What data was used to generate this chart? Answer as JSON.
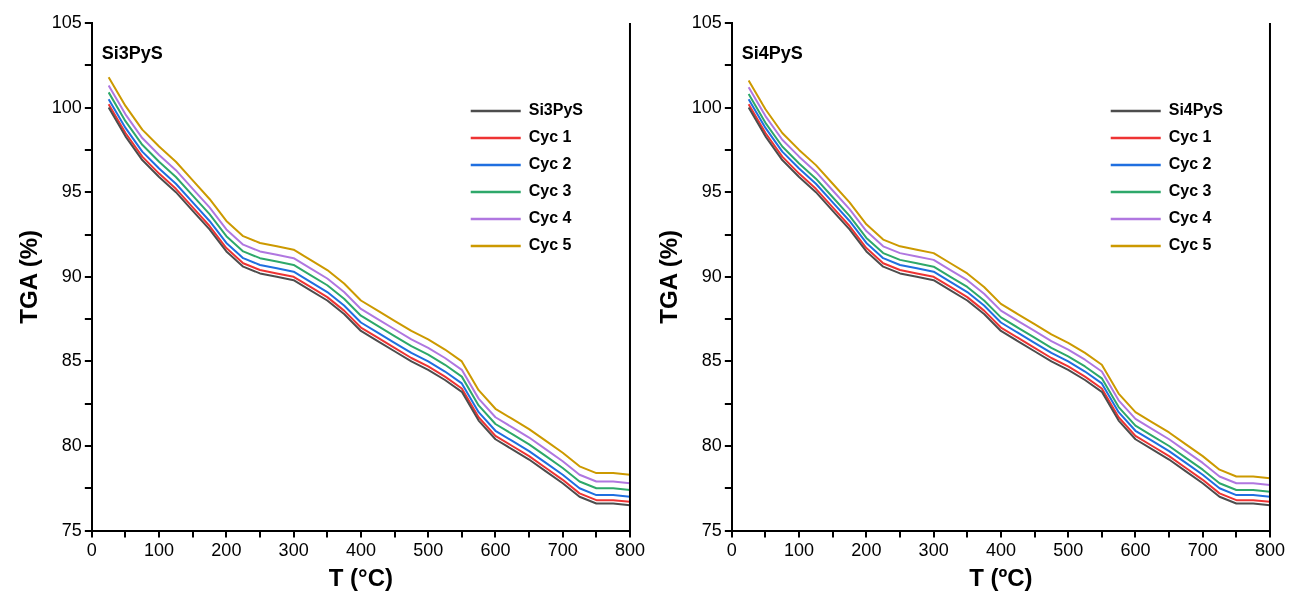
{
  "chart_data": [
    {
      "type": "line",
      "title": "Si3PyS",
      "xlabel": "T (°C)",
      "ylabel": "TGA (%)",
      "x": [
        25,
        50,
        75,
        100,
        125,
        150,
        175,
        200,
        225,
        250,
        275,
        300,
        325,
        350,
        375,
        400,
        425,
        450,
        475,
        500,
        525,
        550,
        575,
        600,
        625,
        650,
        675,
        700,
        725,
        750,
        775,
        800
      ],
      "series": [
        {
          "name": "Si3PyS",
          "color": "#4d4d4d",
          "values": [
            100.0,
            98.3,
            96.9,
            95.9,
            95.0,
            93.9,
            92.8,
            91.5,
            90.6,
            90.2,
            90.0,
            89.8,
            89.2,
            88.6,
            87.8,
            86.8,
            86.2,
            85.6,
            85.0,
            84.5,
            83.9,
            83.2,
            81.5,
            80.4,
            79.8,
            79.2,
            78.5,
            77.8,
            77.0,
            76.6,
            76.6,
            76.5
          ]
        },
        {
          "name": "Cyc 1",
          "color": "#ee3333",
          "values": [
            100.2,
            98.5,
            97.1,
            96.1,
            95.2,
            94.1,
            93.0,
            91.7,
            90.8,
            90.4,
            90.2,
            90.0,
            89.4,
            88.8,
            88.0,
            87.0,
            86.4,
            85.8,
            85.2,
            84.7,
            84.1,
            83.4,
            81.7,
            80.6,
            80.0,
            79.4,
            78.7,
            78.0,
            77.2,
            76.8,
            76.8,
            76.7
          ]
        },
        {
          "name": "Cyc 2",
          "color": "#1f6fe0",
          "values": [
            100.5,
            98.8,
            97.4,
            96.4,
            95.5,
            94.4,
            93.3,
            92.0,
            91.1,
            90.7,
            90.5,
            90.3,
            89.7,
            89.1,
            88.3,
            87.3,
            86.7,
            86.1,
            85.5,
            85.0,
            84.4,
            83.7,
            82.0,
            80.9,
            80.3,
            79.7,
            79.0,
            78.3,
            77.5,
            77.1,
            77.1,
            77.0
          ]
        },
        {
          "name": "Cyc 3",
          "color": "#2ea86a",
          "values": [
            100.9,
            99.2,
            97.8,
            96.8,
            95.9,
            94.8,
            93.7,
            92.4,
            91.5,
            91.1,
            90.9,
            90.7,
            90.1,
            89.5,
            88.7,
            87.7,
            87.1,
            86.5,
            85.9,
            85.4,
            84.8,
            84.1,
            82.4,
            81.3,
            80.7,
            80.1,
            79.4,
            78.7,
            77.9,
            77.5,
            77.5,
            77.4
          ]
        },
        {
          "name": "Cyc 4",
          "color": "#b077e0",
          "values": [
            101.3,
            99.6,
            98.2,
            97.2,
            96.3,
            95.2,
            94.1,
            92.8,
            91.9,
            91.5,
            91.3,
            91.1,
            90.5,
            89.9,
            89.1,
            88.1,
            87.5,
            86.9,
            86.3,
            85.8,
            85.2,
            84.5,
            82.8,
            81.7,
            81.1,
            80.5,
            79.8,
            79.1,
            78.3,
            77.9,
            77.9,
            77.8
          ]
        },
        {
          "name": "Cyc 5",
          "color": "#cc9900",
          "values": [
            101.8,
            100.1,
            98.7,
            97.7,
            96.8,
            95.7,
            94.6,
            93.3,
            92.4,
            92.0,
            91.8,
            91.6,
            91.0,
            90.4,
            89.6,
            88.6,
            88.0,
            87.4,
            86.8,
            86.3,
            85.7,
            85.0,
            83.3,
            82.2,
            81.6,
            81.0,
            80.3,
            79.6,
            78.8,
            78.4,
            78.4,
            78.3
          ]
        }
      ],
      "xlim": [
        0,
        800
      ],
      "xticks": [
        0,
        {
          "value": 50,
          "label": null
        },
        100,
        {
          "value": 150,
          "label": null
        },
        200,
        {
          "value": 250,
          "label": null
        },
        300,
        {
          "value": 350,
          "label": null
        },
        400,
        {
          "value": 450,
          "label": null
        },
        500,
        {
          "value": 550,
          "label": null
        },
        600,
        {
          "value": 650,
          "label": null
        },
        700,
        {
          "value": 750,
          "label": null
        },
        800
      ],
      "ylim": [
        75,
        105
      ],
      "yticks": [
        75,
        {
          "value": 77.5,
          "label": null
        },
        80,
        {
          "value": 82.5,
          "label": null
        },
        85,
        {
          "value": 87.5,
          "label": null
        },
        90,
        {
          "value": 92.5,
          "label": null
        },
        95,
        {
          "value": 97.5,
          "label": null
        },
        100,
        {
          "value": 102.5,
          "label": null
        },
        105
      ],
      "grid": false,
      "legend": "top right",
      "marker": "none",
      "line_style": "solid"
    },
    {
      "type": "line",
      "title": "Si4PyS",
      "xlabel": "T (ºC)",
      "ylabel": "TGA (%)",
      "x": [
        25,
        50,
        75,
        100,
        125,
        150,
        175,
        200,
        225,
        250,
        275,
        300,
        325,
        350,
        375,
        400,
        425,
        450,
        475,
        500,
        525,
        550,
        575,
        600,
        625,
        650,
        675,
        700,
        725,
        750,
        775,
        800
      ],
      "series": [
        {
          "name": "Si4PyS",
          "color": "#4d4d4d",
          "values": [
            100.0,
            98.3,
            96.9,
            95.9,
            95.0,
            93.9,
            92.8,
            91.5,
            90.6,
            90.2,
            90.0,
            89.8,
            89.2,
            88.6,
            87.8,
            86.8,
            86.2,
            85.6,
            85.0,
            84.5,
            83.9,
            83.2,
            81.5,
            80.4,
            79.8,
            79.2,
            78.5,
            77.8,
            77.0,
            76.6,
            76.6,
            76.5
          ]
        },
        {
          "name": "Cyc 1",
          "color": "#ee3333",
          "values": [
            100.2,
            98.5,
            97.1,
            96.1,
            95.2,
            94.1,
            93.0,
            91.7,
            90.8,
            90.4,
            90.2,
            90.0,
            89.4,
            88.8,
            88.0,
            87.0,
            86.4,
            85.8,
            85.2,
            84.7,
            84.1,
            83.4,
            81.7,
            80.6,
            80.0,
            79.4,
            78.7,
            78.0,
            77.2,
            76.8,
            76.8,
            76.7
          ]
        },
        {
          "name": "Cyc 2",
          "color": "#1f6fe0",
          "values": [
            100.5,
            98.8,
            97.4,
            96.4,
            95.5,
            94.4,
            93.3,
            92.0,
            91.1,
            90.7,
            90.5,
            90.3,
            89.7,
            89.1,
            88.3,
            87.3,
            86.7,
            86.1,
            85.5,
            85.0,
            84.4,
            83.7,
            82.0,
            80.9,
            80.3,
            79.7,
            79.0,
            78.3,
            77.5,
            77.1,
            77.1,
            77.0
          ]
        },
        {
          "name": "Cyc 3",
          "color": "#2ea86a",
          "values": [
            100.8,
            99.1,
            97.7,
            96.7,
            95.8,
            94.7,
            93.6,
            92.3,
            91.4,
            91.0,
            90.8,
            90.6,
            90.0,
            89.4,
            88.6,
            87.6,
            87.0,
            86.4,
            85.8,
            85.3,
            84.7,
            84.0,
            82.3,
            81.2,
            80.6,
            80.0,
            79.3,
            78.6,
            77.8,
            77.4,
            77.4,
            77.3
          ]
        },
        {
          "name": "Cyc 4",
          "color": "#b077e0",
          "values": [
            101.2,
            99.5,
            98.1,
            97.1,
            96.2,
            95.1,
            94.0,
            92.7,
            91.8,
            91.4,
            91.2,
            91.0,
            90.4,
            89.8,
            89.0,
            88.0,
            87.4,
            86.8,
            86.2,
            85.7,
            85.1,
            84.4,
            82.7,
            81.6,
            81.0,
            80.4,
            79.7,
            79.0,
            78.2,
            77.8,
            77.8,
            77.7
          ]
        },
        {
          "name": "Cyc 5",
          "color": "#cc9900",
          "values": [
            101.6,
            99.9,
            98.5,
            97.5,
            96.6,
            95.5,
            94.4,
            93.1,
            92.2,
            91.8,
            91.6,
            91.4,
            90.8,
            90.2,
            89.4,
            88.4,
            87.8,
            87.2,
            86.6,
            86.1,
            85.5,
            84.8,
            83.1,
            82.0,
            81.4,
            80.8,
            80.1,
            79.4,
            78.6,
            78.2,
            78.2,
            78.1
          ]
        }
      ],
      "xlim": [
        0,
        800
      ],
      "xticks": [
        0,
        {
          "value": 50,
          "label": null
        },
        100,
        {
          "value": 150,
          "label": null
        },
        200,
        {
          "value": 250,
          "label": null
        },
        300,
        {
          "value": 350,
          "label": null
        },
        400,
        {
          "value": 450,
          "label": null
        },
        500,
        {
          "value": 550,
          "label": null
        },
        600,
        {
          "value": 650,
          "label": null
        },
        700,
        {
          "value": 750,
          "label": null
        },
        800
      ],
      "ylim": [
        75,
        105
      ],
      "yticks": [
        75,
        {
          "value": 77.5,
          "label": null
        },
        80,
        {
          "value": 82.5,
          "label": null
        },
        85,
        {
          "value": 87.5,
          "label": null
        },
        90,
        {
          "value": 92.5,
          "label": null
        },
        95,
        {
          "value": 97.5,
          "label": null
        },
        100,
        {
          "value": 102.5,
          "label": null
        },
        105
      ],
      "grid": false,
      "legend": "top right",
      "marker": "none",
      "line_style": "solid"
    }
  ]
}
